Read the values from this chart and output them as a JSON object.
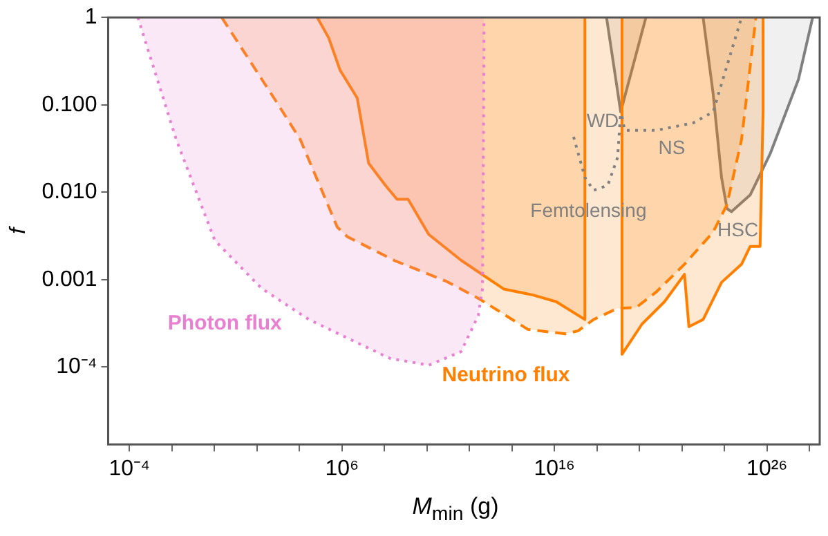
{
  "chart_data": {
    "type": "line",
    "xlabel": "M$_{min}$ (g)",
    "ylabel": "f",
    "log": "xy",
    "grid": false,
    "legend": false,
    "marker": "none",
    "xlim": [
      1e-05,
      3e+28
    ],
    "ylim": [
      1.3e-05,
      1
    ],
    "xticks": [
      {
        "value": 0.0001,
        "label": "10⁻⁴"
      },
      {
        "value": 0.01,
        "label": null
      },
      {
        "value": 1,
        "label": null
      },
      {
        "value": 100.0,
        "label": null
      },
      {
        "value": 10000.0,
        "label": null
      },
      {
        "value": 1000000.0,
        "label": "10⁶"
      },
      {
        "value": 100000000.0,
        "label": null
      },
      {
        "value": 10000000000.0,
        "label": null
      },
      {
        "value": 1000000000000.0,
        "label": null
      },
      {
        "value": 100000000000000.0,
        "label": null
      },
      {
        "value": 1e+16,
        "label": "10¹⁶"
      },
      {
        "value": 1e+18,
        "label": null
      },
      {
        "value": 1e+20,
        "label": null
      },
      {
        "value": 1e+22,
        "label": null
      },
      {
        "value": 1e+24,
        "label": null
      },
      {
        "value": 1e+26,
        "label": "10²⁶"
      },
      {
        "value": 1e+28,
        "label": null
      }
    ],
    "yticks": [
      {
        "value": 0.0001,
        "label": "10⁻⁴"
      },
      {
        "value": 0.001,
        "label": "0.001"
      },
      {
        "value": 0.01,
        "label": "0.010"
      },
      {
        "value": 0.1,
        "label": "0.100"
      },
      1
    ],
    "series": [
      {
        "type": "area",
        "color": "#e87fd0",
        "line_style": "dotted",
        "x": [
          0.00025,
          0.016,
          1.05,
          170,
          28000.0,
          5200000.0,
          180000000.0,
          12000000000.0,
          400000000000.0,
          2600000000000.0,
          4100000000000.0,
          4800000000000.0,
          4800000000000.0
        ],
        "values": [
          1,
          0.04,
          0.0028,
          0.00079,
          0.00035,
          0.00019,
          0.000126,
          0.000105,
          0.00015,
          0.00039,
          0.00079,
          0.36,
          1
        ]
      },
      {
        "type": "area",
        "color": "#ff8000",
        "line_style": "dashed",
        "x": [
          2.2,
          790,
          11000.0,
          600000.0,
          1800000.0,
          290000000.0,
          87000000000.0,
          3000000000000.0,
          560000000000000.0,
          3.2e+16,
          1.3e+17,
          6.9e+17,
          9.3e+18,
          6.9e+19,
          6e+20,
          1.3e+22,
          2.9e+23,
          1.3e+24,
          6.3e+24,
          3e+25
        ],
        "values": [
          1,
          0.11,
          0.04,
          0.004,
          0.0031,
          0.00166,
          0.00095,
          0.0006,
          0.00027,
          0.00024,
          0.00026,
          0.00035,
          0.00047,
          0.00048,
          0.00072,
          0.0015,
          0.0035,
          0.0072,
          0.04,
          1
        ]
      },
      {
        "type": "area",
        "color": "#ff8000",
        "line_style": "solid",
        "x": [
          69000.0,
          240000.0,
          810000.0,
          5200000.0,
          18000000.0,
          110000000.0,
          390000000.0,
          1300000000.0,
          12000000000.0,
          410000000000.0,
          42000000000000.0,
          910000000000000.0,
          1.2e+16,
          2.7e+17,
          2.7e+17
        ],
        "values": [
          1,
          0.58,
          0.25,
          0.12,
          0.0215,
          0.012,
          0.0083,
          0.0083,
          0.0033,
          0.00166,
          0.00078,
          0.00067,
          0.00056,
          0.00035,
          1
        ]
      },
      {
        "type": "area",
        "color": "#ff8000",
        "line_style": "solid",
        "x": [
          1.5e+19,
          1.5e+19,
          1.3e+20,
          1.5e+21,
          1.3e+22,
          2.1e+22,
          9.8e+22,
          7.2e+23,
          6.3e+24,
          1.6e+25,
          4.7e+25,
          6.5e+25,
          6.5e+25
        ],
        "values": [
          1,
          0.00014,
          0.00031,
          0.00056,
          0.00115,
          0.00029,
          0.00035,
          0.00093,
          0.0015,
          0.0024,
          0.0024,
          0.083,
          1
        ]
      },
      {
        "type": "area",
        "color": "#808080",
        "line_style": "solid",
        "x": [
          2.8e+18,
          1.3e+19,
          2e+20
        ],
        "values": [
          1,
          0.083,
          1
        ]
      },
      {
        "color": "#808080",
        "line_style": "dotted",
        "x": [
          1.5e+19,
          2e+19,
          6e+20,
          3.3e+22,
          2.9e+23,
          6.3e+24
        ],
        "values": [
          0.074,
          0.051,
          0.051,
          0.062,
          0.083,
          1
        ]
      },
      {
        "color": "#808080",
        "line_style": "dotted",
        "x": [
          7.9e+16,
          2.7e+17,
          6.9e+17,
          3.2e+18,
          9.3e+18,
          1.3e+19
        ],
        "values": [
          0.043,
          0.0148,
          0.0105,
          0.012,
          0.025,
          0.083
        ]
      },
      {
        "type": "area",
        "color": "#808080",
        "line_style": "solid",
        "x": [
          9.8e+22,
          2.9e+23,
          7.2e+23,
          1.3e+24,
          2.1e+24,
          1.6e+25,
          1.4e+26,
          3e+27,
          1.4e+28
        ],
        "values": [
          1,
          0.135,
          0.0148,
          0.0065,
          0.006,
          0.0093,
          0.0275,
          0.195,
          1
        ]
      }
    ],
    "annotations": [
      "Photon flux",
      "Neutrino flux",
      "Femtolensing",
      "WD",
      "NS",
      "HSC"
    ]
  }
}
